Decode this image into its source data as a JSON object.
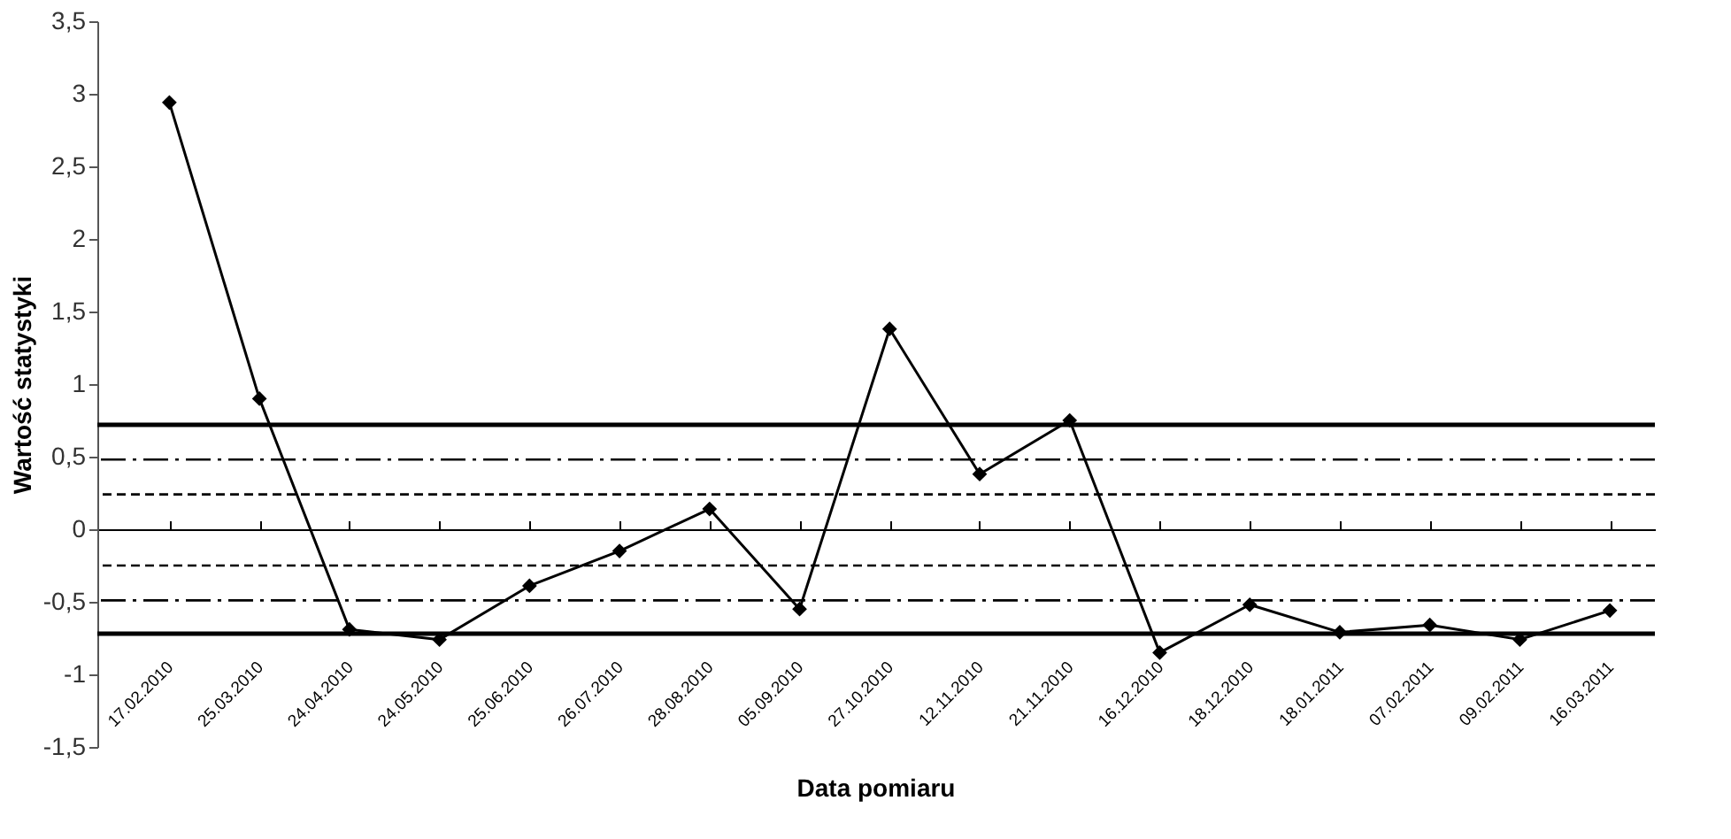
{
  "chart_data": {
    "type": "line",
    "xlabel": "Data pomiaru",
    "ylabel": "Wartość statystyki",
    "categories": [
      "17.02.2010",
      "25.03.2010",
      "24.04.2010",
      "24.05.2010",
      "25.06.2010",
      "26.07.2010",
      "28.08.2010",
      "05.09.2010",
      "27.10.2010",
      "12.11.2010",
      "21.11.2010",
      "16.12.2010",
      "18.12.2010",
      "18.01.2011",
      "07.02.2011",
      "09.02.2011",
      "16.03.2011"
    ],
    "series": [
      {
        "color": "#000000",
        "values": [
          2.94,
          0.9,
          -0.69,
          -0.76,
          -0.39,
          -0.15,
          0.14,
          -0.55,
          1.38,
          0.38,
          0.75,
          -0.85,
          -0.52,
          -0.71,
          -0.66,
          -0.76,
          -0.56
        ]
      }
    ],
    "ylim": [
      -1.5,
      3.5
    ],
    "yticks": [
      {
        "value": -1.5,
        "label": "-1,5"
      },
      -1,
      {
        "value": -0.5,
        "label": "-0,5"
      },
      0,
      {
        "value": 0.5,
        "label": "0,5"
      },
      1,
      {
        "value": 1.5,
        "label": "1,5"
      },
      2,
      {
        "value": 2.5,
        "label": "2,5"
      },
      3,
      {
        "value": 3.5,
        "label": "3,5"
      }
    ],
    "ref_lines": [
      {
        "axis": "y",
        "value": 0.72,
        "color": "#000000",
        "line_style": "solid"
      },
      {
        "axis": "y",
        "value": 0.48,
        "color": "#000000",
        "line_style": "dashdot"
      },
      {
        "axis": "y",
        "value": 0.24,
        "color": "#000000",
        "line_style": "dashed"
      },
      {
        "axis": "y",
        "value": -0.25,
        "color": "#000000",
        "line_style": "dashed"
      },
      {
        "axis": "y",
        "value": -0.49,
        "color": "#000000",
        "line_style": "dashdot"
      },
      {
        "axis": "y",
        "value": -0.72,
        "color": "#000000",
        "line_style": "solid"
      }
    ],
    "marker": "diamond",
    "grid": false
  }
}
